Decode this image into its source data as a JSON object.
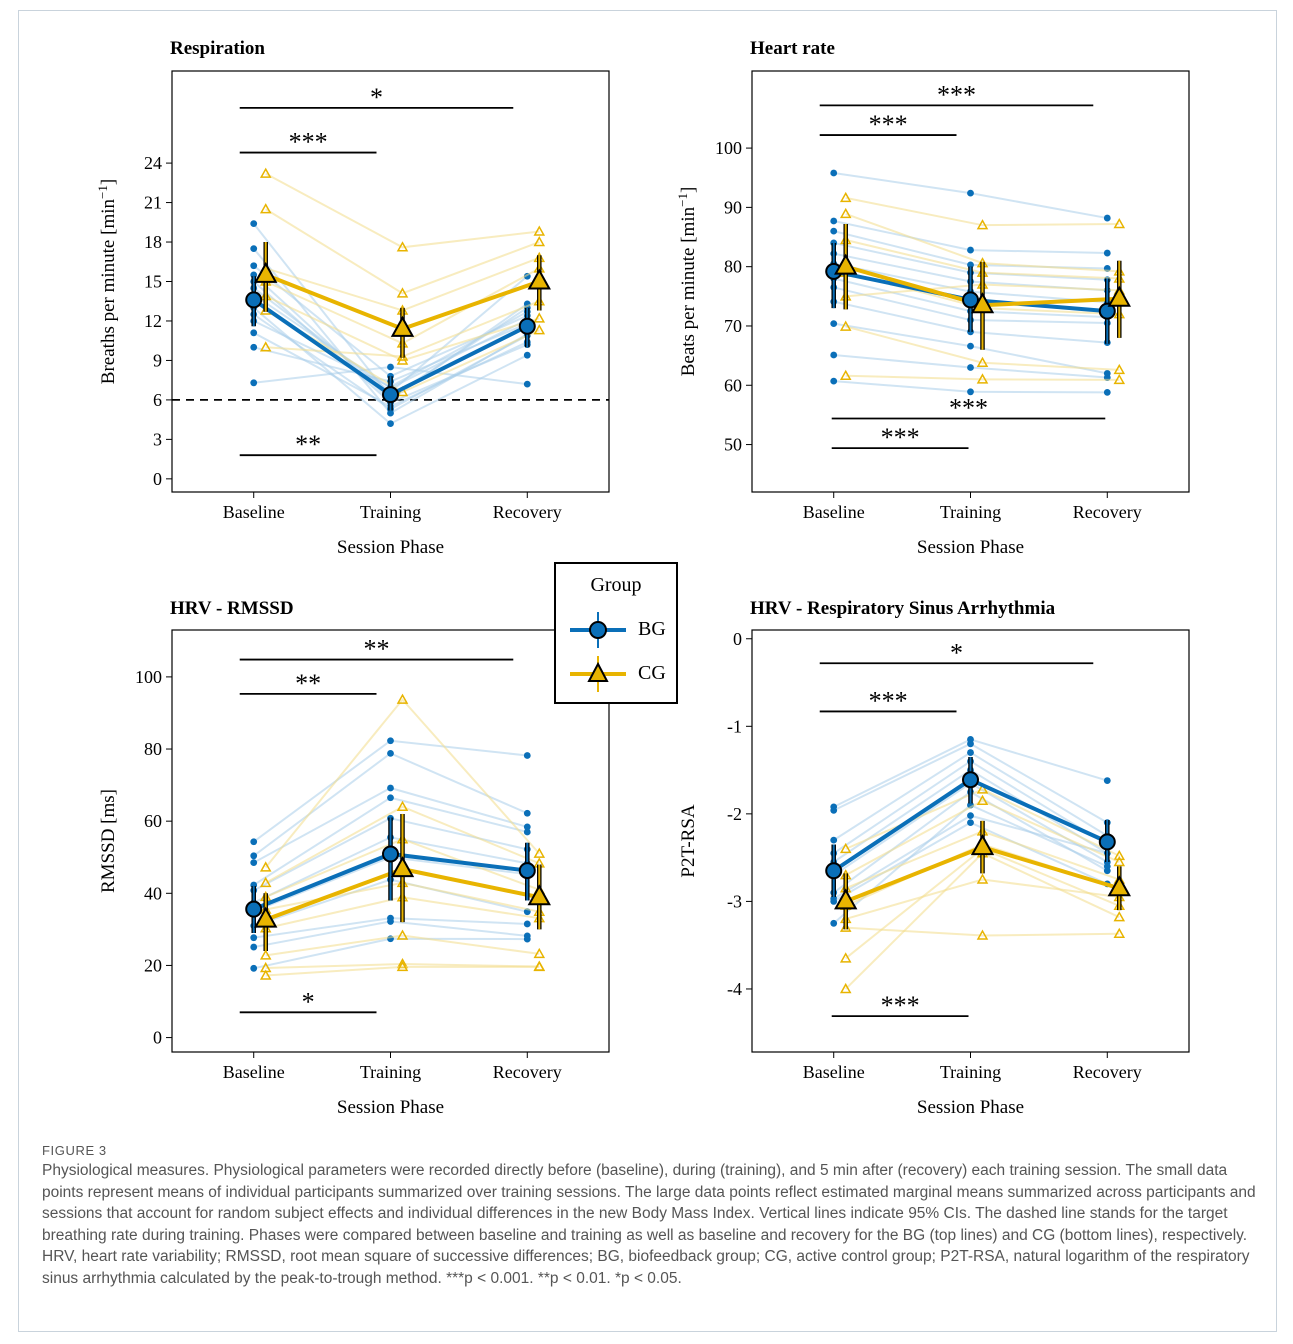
{
  "figure": {
    "label": "FIGURE 3",
    "caption": "Physiological measures. Physiological parameters were recorded directly before (baseline), during (training), and 5 min after (recovery) each training session. The small data points represent means of individual participants summarized over training sessions. The large data points reflect estimated marginal means summarized across participants and sessions that account for random subject effects and individual differences in the new Body Mass Index. Vertical lines indicate 95% CIs. The dashed line stands for the target breathing rate during training. Phases were compared between baseline and training as well as baseline and recovery for the BG (top lines) and CG (bottom lines), respectively. HRV, heart rate variability; RMSSD, root mean square of successive differences; BG, biofeedback group; CG, active control group; P2T-RSA, natural logarithm of the respiratory sinus arrhythmia calculated by the peak-to-trough method. ***p < 0.001. **p < 0.01. *p < 0.05."
  },
  "legend": {
    "title": "Group",
    "items": [
      {
        "label": "BG",
        "color": "#0a6fb8",
        "marker": "circle"
      },
      {
        "label": "CG",
        "color": "#e8b400",
        "marker": "triangle"
      }
    ]
  },
  "colors": {
    "bg": "#0a6fb8",
    "cg": "#e8b400",
    "bg_light": "#a9cde9",
    "cg_light": "#f3dc8a"
  },
  "chart_data": [
    {
      "id": "resp",
      "type": "line",
      "title": "Respiration",
      "xlabel": "Session Phase",
      "ylabel": "Breaths per minute [min",
      "ylabel_sup": "−1",
      "ylabel_end": "]",
      "categories": [
        "Baseline",
        "Training",
        "Recovery"
      ],
      "ylim": [
        -1,
        31
      ],
      "yticks": [
        0,
        3,
        6,
        9,
        12,
        15,
        18,
        21,
        24
      ],
      "yticklabels": [
        "0",
        "3",
        "6",
        "9",
        "12",
        "15",
        "18",
        "21",
        "24"
      ],
      "hline": 6,
      "series": [
        {
          "name": "BG",
          "values": [
            13.6,
            6.4,
            11.6
          ],
          "ci_low": [
            11.6,
            5.2,
            10.0
          ],
          "ci_high": [
            15.4,
            7.8,
            13.0
          ]
        },
        {
          "name": "CG",
          "values": [
            15.5,
            11.4,
            15.0
          ],
          "ci_low": [
            12.7,
            9.2,
            12.8
          ],
          "ci_high": [
            18.0,
            13.0,
            17.0
          ]
        }
      ],
      "individual": {
        "BG": [
          [
            19.4,
            6.2,
            13.0
          ],
          [
            17.5,
            5.0,
            11.0
          ],
          [
            16.2,
            7.8,
            12.4
          ],
          [
            15.0,
            5.8,
            10.2
          ],
          [
            14.5,
            6.6,
            15.4
          ],
          [
            13.0,
            4.2,
            9.4
          ],
          [
            12.0,
            7.0,
            12.7
          ],
          [
            11.1,
            5.5,
            10.4
          ],
          [
            10.0,
            7.4,
            11.8
          ],
          [
            7.3,
            8.5,
            7.2
          ],
          [
            14.0,
            6.9,
            12.1
          ],
          [
            12.5,
            5.3,
            10.9
          ],
          [
            15.5,
            6.0,
            13.3
          ]
        ],
        "CG": [
          [
            23.2,
            17.6,
            18.8
          ],
          [
            20.5,
            14.1,
            18.0
          ],
          [
            16.0,
            12.8,
            16.8
          ],
          [
            13.9,
            9.0,
            12.2
          ],
          [
            12.8,
            6.6,
            11.3
          ],
          [
            10.0,
            9.3,
            13.5
          ],
          [
            15.0,
            10.3,
            16.0
          ]
        ]
      },
      "comparisons": [
        {
          "from": 0,
          "to": 2,
          "y": 28.2,
          "label": "*"
        },
        {
          "from": 0,
          "to": 1,
          "y": 24.8,
          "label": "***"
        },
        {
          "from": 0,
          "to": 1,
          "y": 1.8,
          "label": "**"
        }
      ]
    },
    {
      "id": "hr",
      "type": "line",
      "title": "Heart rate",
      "xlabel": "Session Phase",
      "ylabel": "Beats per minute [min",
      "ylabel_sup": "−1",
      "ylabel_end": "]",
      "categories": [
        "Baseline",
        "Training",
        "Recovery"
      ],
      "ylim": [
        42,
        113
      ],
      "yticks": [
        50,
        60,
        70,
        80,
        90,
        100
      ],
      "yticklabels": [
        "50",
        "60",
        "70",
        "80",
        "90",
        "100"
      ],
      "series": [
        {
          "name": "BG",
          "values": [
            79.2,
            74.4,
            72.5
          ],
          "ci_low": [
            73.0,
            69.0,
            67.0
          ],
          "ci_high": [
            84.0,
            80.0,
            78.0
          ]
        },
        {
          "name": "CG",
          "values": [
            80.0,
            73.5,
            74.6
          ],
          "ci_low": [
            72.8,
            66.0,
            68.0
          ],
          "ci_high": [
            87.2,
            80.8,
            81.0
          ]
        }
      ],
      "individual": {
        "BG": [
          [
            95.8,
            92.4,
            88.2
          ],
          [
            87.7,
            82.8,
            82.3
          ],
          [
            86.0,
            80.3,
            79.7
          ],
          [
            84.0,
            79.0,
            77.8
          ],
          [
            82.2,
            77.5,
            76.0
          ],
          [
            80.5,
            75.8,
            74.0
          ],
          [
            78.0,
            72.5,
            71.5
          ],
          [
            76.5,
            71.0,
            70.5
          ],
          [
            74.1,
            69.0,
            67.2
          ],
          [
            70.4,
            66.6,
            62.0
          ],
          [
            65.1,
            63.0,
            61.3
          ],
          [
            60.7,
            58.9,
            58.8
          ]
        ],
        "CG": [
          [
            91.6,
            87.0,
            87.2
          ],
          [
            88.9,
            80.6,
            79.2
          ],
          [
            84.5,
            79.0,
            78.0
          ],
          [
            69.9,
            63.8,
            62.6
          ],
          [
            61.6,
            61.0,
            60.9
          ],
          [
            79.0,
            73.0,
            72.0
          ],
          [
            75.0,
            77.0,
            76.0
          ]
        ]
      },
      "comparisons": [
        {
          "from": 0,
          "to": 2,
          "y": 107.2,
          "label": "***"
        },
        {
          "from": 0,
          "to": 1,
          "y": 102.2,
          "label": "***"
        },
        {
          "from": 0,
          "to": 2,
          "y": 54.4,
          "label": "***",
          "offset": 1
        },
        {
          "from": 0,
          "to": 1,
          "y": 49.4,
          "label": "***",
          "offset": 1
        }
      ]
    },
    {
      "id": "rmssd",
      "type": "line",
      "title": "HRV - RMSSD",
      "xlabel": "Session Phase",
      "ylabel": "RMSSD [ms]",
      "categories": [
        "Baseline",
        "Training",
        "Recovery"
      ],
      "ylim": [
        -4,
        113
      ],
      "yticks": [
        0,
        20,
        40,
        60,
        80,
        100
      ],
      "yticklabels": [
        "0",
        "20",
        "40",
        "60",
        "80",
        "100"
      ],
      "series": [
        {
          "name": "BG",
          "values": [
            35.6,
            50.9,
            46.3
          ],
          "ci_low": [
            29.0,
            38.0,
            38.0
          ],
          "ci_high": [
            42.0,
            61.0,
            54.0
          ]
        },
        {
          "name": "CG",
          "values": [
            32.7,
            46.7,
            38.9
          ],
          "ci_low": [
            24.0,
            32.0,
            30.0
          ],
          "ci_high": [
            40.0,
            62.0,
            48.0
          ]
        }
      ],
      "individual": {
        "BG": [
          [
            54.3,
            82.3,
            78.2
          ],
          [
            50.4,
            78.8,
            62.2
          ],
          [
            48.5,
            69.2,
            58.4
          ],
          [
            42.3,
            66.5,
            57.0
          ],
          [
            40.8,
            60.8,
            52.2
          ],
          [
            37.4,
            55.5,
            48.3
          ],
          [
            35.0,
            50.0,
            45.3
          ],
          [
            31.0,
            43.8,
            34.9
          ],
          [
            27.7,
            33.1,
            31.5
          ],
          [
            25.1,
            32.2,
            28.2
          ],
          [
            19.2,
            27.4,
            27.3
          ]
        ],
        "CG": [
          [
            47.2,
            93.7,
            51.0
          ],
          [
            42.9,
            64.0,
            48.3
          ],
          [
            39.0,
            55.0,
            41.0
          ],
          [
            35.5,
            42.9,
            34.9
          ],
          [
            30.3,
            38.9,
            33.1
          ],
          [
            22.8,
            28.3,
            23.2
          ],
          [
            19.3,
            20.4,
            19.7
          ],
          [
            17.2,
            19.6,
            19.6
          ]
        ]
      },
      "comparisons": [
        {
          "from": 0,
          "to": 2,
          "y": 104.8,
          "label": "**"
        },
        {
          "from": 0,
          "to": 1,
          "y": 95.3,
          "label": "**"
        },
        {
          "from": 0,
          "to": 1,
          "y": 7.0,
          "label": "*"
        }
      ]
    },
    {
      "id": "rsa",
      "type": "line",
      "title": "HRV - Respiratory Sinus Arrhythmia",
      "xlabel": "Session Phase",
      "ylabel": "P2T-RSA",
      "categories": [
        "Baseline",
        "Training",
        "Recovery"
      ],
      "ylim": [
        -4.72,
        0.1
      ],
      "yticks": [
        0,
        -1,
        -2,
        -3,
        -4
      ],
      "yticklabels": [
        "0",
        "-1",
        "-2",
        "-3",
        "-4"
      ],
      "series": [
        {
          "name": "BG",
          "values": [
            -2.65,
            -1.61,
            -2.32
          ],
          "ci_low": [
            -2.95,
            -1.88,
            -2.55
          ],
          "ci_high": [
            -2.35,
            -1.35,
            -2.07
          ]
        },
        {
          "name": "CG",
          "values": [
            -3.0,
            -2.38,
            -2.85
          ],
          "ci_low": [
            -3.32,
            -2.68,
            -3.1
          ],
          "ci_high": [
            -2.68,
            -2.08,
            -2.6
          ]
        }
      ],
      "individual": {
        "BG": [
          [
            -1.92,
            -1.15,
            -1.62
          ],
          [
            -1.96,
            -1.2,
            -2.1
          ],
          [
            -2.3,
            -1.3,
            -2.25
          ],
          [
            -2.45,
            -1.4,
            -2.35
          ],
          [
            -2.55,
            -1.5,
            -2.45
          ],
          [
            -2.7,
            -1.65,
            -2.55
          ],
          [
            -2.9,
            -1.75,
            -2.65
          ],
          [
            -2.97,
            -2.02,
            -2.45
          ],
          [
            -3.0,
            -2.1,
            -2.8
          ],
          [
            -3.25,
            -1.9,
            -2.6
          ]
        ],
        "CG": [
          [
            -2.4,
            -1.72,
            -2.48
          ],
          [
            -2.7,
            -1.85,
            -2.55
          ],
          [
            -2.85,
            -2.2,
            -2.75
          ],
          [
            -3.05,
            -2.35,
            -2.85
          ],
          [
            -3.2,
            -2.75,
            -2.95
          ],
          [
            -3.65,
            -2.4,
            -3.05
          ],
          [
            -4.0,
            -2.45,
            -3.18
          ],
          [
            -3.3,
            -3.39,
            -3.37
          ]
        ]
      },
      "comparisons": [
        {
          "from": 0,
          "to": 2,
          "y": -0.28,
          "label": "*"
        },
        {
          "from": 0,
          "to": 1,
          "y": -0.83,
          "label": "***"
        },
        {
          "from": 0,
          "to": 1,
          "y": -4.31,
          "label": "***",
          "offset": 1
        }
      ]
    }
  ]
}
